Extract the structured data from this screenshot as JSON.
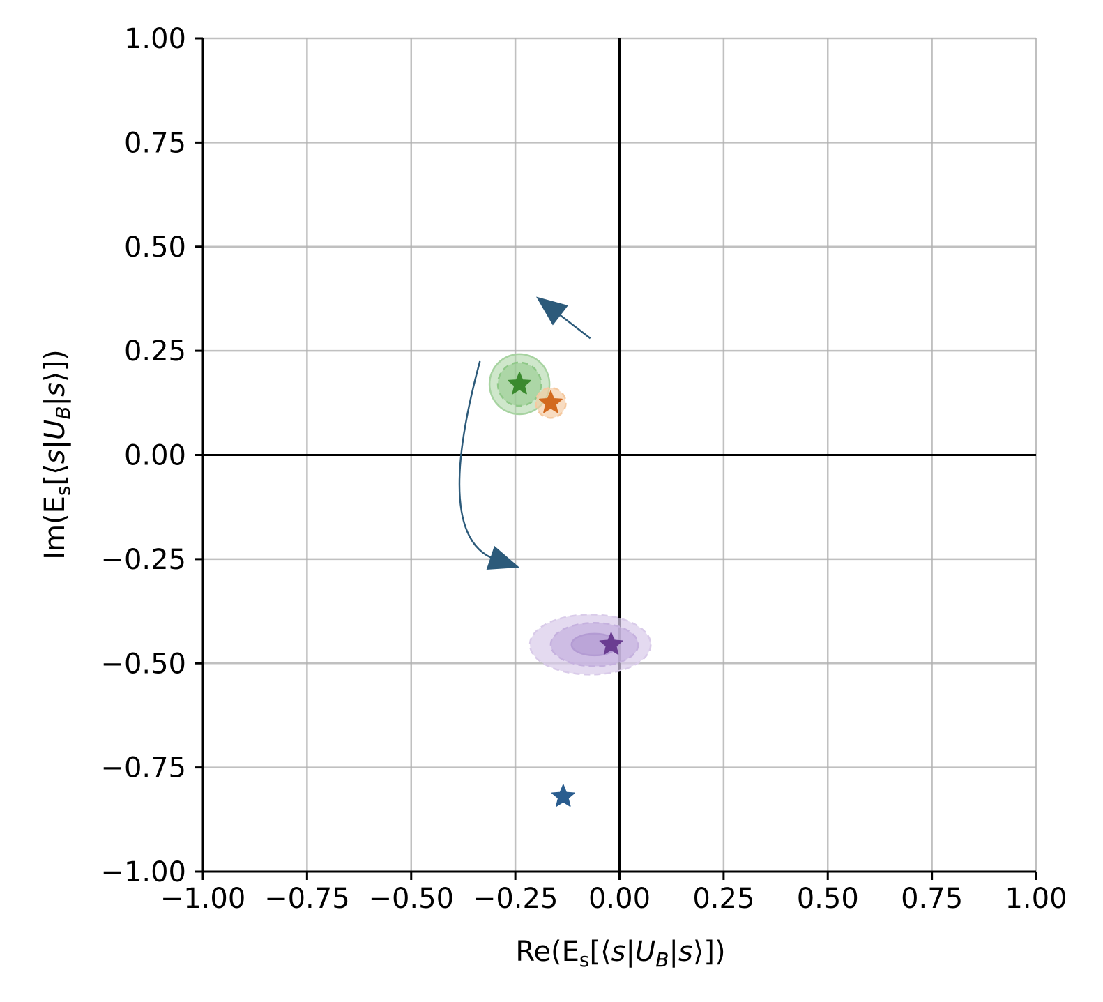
{
  "chart_data": {
    "type": "scatter",
    "title": "",
    "xlabel": "Re(E_s[⟨s|U_B|s⟩])",
    "ylabel": "Im(E_s[⟨s|U_B|s⟩])",
    "xlim": [
      -1.0,
      1.0
    ],
    "ylim": [
      -1.0,
      1.0
    ],
    "xticks": [
      "−1.00",
      "−0.75",
      "−0.50",
      "−0.25",
      "0.00",
      "0.25",
      "0.50",
      "0.75",
      "1.00"
    ],
    "yticks": [
      "1.00",
      "0.75",
      "0.50",
      "0.25",
      "0.00",
      "−0.25",
      "−0.50",
      "−0.75",
      "−1.00"
    ],
    "grid": true,
    "legend": "none",
    "series": [
      {
        "color": "#2a5d8f",
        "marker": "star",
        "point": {
          "x": -0.135,
          "y": -0.82
        },
        "regions": []
      },
      {
        "color": "#3a8a2e",
        "marker": "star",
        "point": {
          "x": -0.24,
          "y": 0.17
        },
        "regions": [
          {
            "cx": -0.24,
            "cy": 0.17,
            "rx": 0.072,
            "ry": 0.072,
            "fill": "#a7d3a1",
            "opacity": 0.55,
            "dashed": false
          },
          {
            "cx": -0.24,
            "cy": 0.17,
            "rx": 0.052,
            "ry": 0.052,
            "fill": "#8fc888",
            "opacity": 0.55,
            "dashed": true
          }
        ]
      },
      {
        "color": "#d2691e",
        "marker": "star",
        "point": {
          "x": -0.165,
          "y": 0.125
        },
        "regions": [
          {
            "cx": -0.165,
            "cy": 0.125,
            "rx": 0.036,
            "ry": 0.036,
            "fill": "#f5c9a0",
            "opacity": 0.65,
            "dashed": true
          }
        ]
      },
      {
        "color": "#6a3d91",
        "marker": "star",
        "point": {
          "x": -0.02,
          "y": -0.455
        },
        "regions": [
          {
            "cx": -0.07,
            "cy": -0.455,
            "rx": 0.145,
            "ry": 0.072,
            "fill": "#d9cbe9",
            "opacity": 0.7,
            "dashed": true
          },
          {
            "cx": -0.06,
            "cy": -0.455,
            "rx": 0.105,
            "ry": 0.052,
            "fill": "#c5b1de",
            "opacity": 0.7,
            "dashed": true
          },
          {
            "cx": -0.06,
            "cy": -0.455,
            "rx": 0.055,
            "ry": 0.026,
            "fill": "#b39bd3",
            "opacity": 0.7,
            "dashed": false
          }
        ]
      }
    ],
    "arrows": [
      {
        "color": "#2c5a7a",
        "shape": "straight",
        "from": {
          "x": -0.07,
          "y": 0.28
        },
        "to": {
          "x": -0.2,
          "y": 0.38
        }
      },
      {
        "color": "#2c5a7a",
        "shape": "curved",
        "from": {
          "x": -0.335,
          "y": 0.225
        },
        "to": {
          "x": -0.24,
          "y": -0.27
        },
        "control": {
          "x": -0.45,
          "y": -0.2
        }
      }
    ]
  }
}
